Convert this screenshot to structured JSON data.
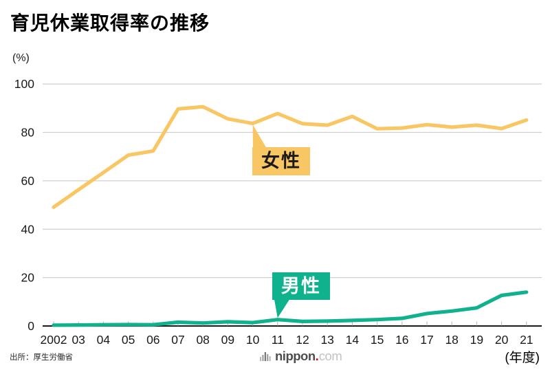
{
  "header": {
    "title": "育児休業取得率の推移"
  },
  "chart_data": {
    "type": "line",
    "title": "育児休業取得率の推移",
    "y_unit_label": "(%)",
    "x_unit_label": "(年度)",
    "ylim": [
      0,
      100
    ],
    "y_ticks": [
      0,
      20,
      40,
      60,
      80,
      100
    ],
    "grid": "horizontal gridlines, light gray; zero line black",
    "categories": [
      "2002",
      "03",
      "04",
      "05",
      "06",
      "07",
      "08",
      "09",
      "10",
      "11",
      "12",
      "13",
      "14",
      "15",
      "16",
      "17",
      "18",
      "19",
      "20",
      "21"
    ],
    "series": [
      {
        "id": "female",
        "name": "女性",
        "color": "#f9c664",
        "label_text_color": "#1a1a1a",
        "values": [
          49.1,
          56.3,
          63.4,
          70.6,
          72.3,
          89.7,
          90.6,
          85.6,
          83.7,
          87.8,
          83.6,
          83.0,
          86.6,
          81.5,
          81.8,
          83.2,
          82.2,
          83.0,
          81.6,
          85.1
        ],
        "callout_points_at_category": "10"
      },
      {
        "id": "male",
        "name": "男性",
        "color": "#10b28e",
        "label_text_color": "#ffffff",
        "values": [
          0.33,
          0.4,
          0.5,
          0.56,
          0.5,
          1.56,
          1.23,
          1.72,
          1.38,
          2.63,
          1.89,
          2.03,
          2.3,
          2.65,
          3.16,
          5.14,
          6.16,
          7.48,
          12.65,
          13.97
        ],
        "callout_points_at_category": "11"
      }
    ],
    "axis_color": "#1a1a1a",
    "grid_color": "#cfcfcf"
  },
  "footer": {
    "source_label": "出所：厚生労働省",
    "logo": {
      "word": "nippon",
      "dot": ".",
      "tld": "com"
    }
  }
}
